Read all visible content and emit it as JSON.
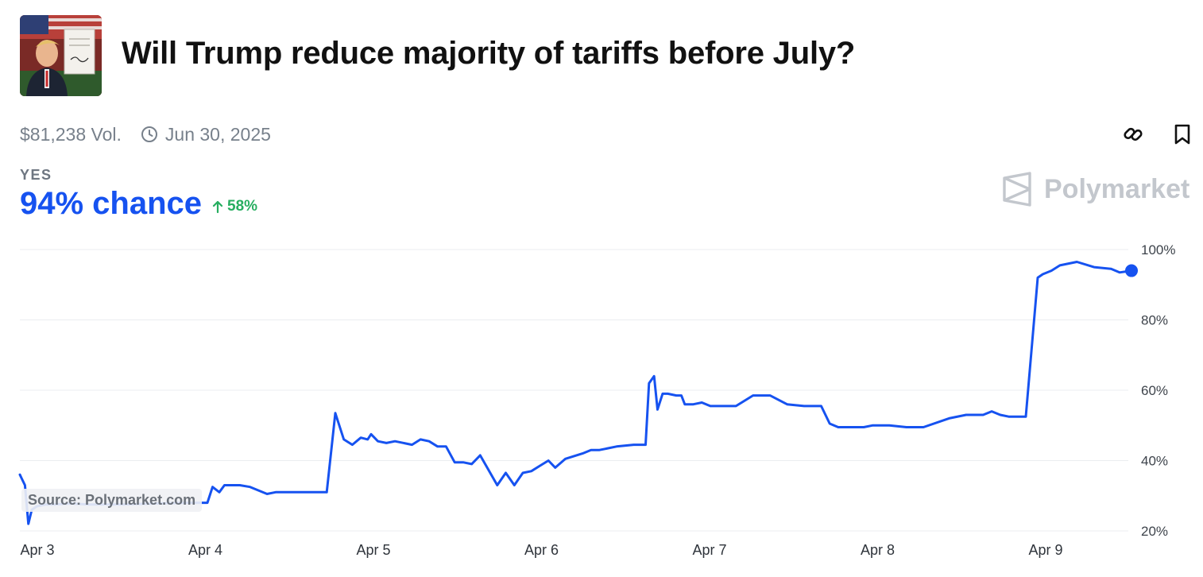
{
  "market": {
    "title": "Will Trump reduce majority of tariffs before July?",
    "volume": "$81,238 Vol.",
    "end_date": "Jun 30, 2025",
    "outcome_label": "YES",
    "chance": "94% chance",
    "change": "58%"
  },
  "brand": {
    "name": "Polymarket"
  },
  "source": "Source: Polymarket.com",
  "icons": {
    "thumbnail": "market-thumbnail-icon",
    "clock": "clock-icon",
    "link": "link-icon",
    "bookmark": "bookmark-icon",
    "arrow": "arrow-up-icon",
    "logo": "polymarket-logo-icon"
  },
  "colors": {
    "line": "#1652f0",
    "chance": "#1652f0",
    "up": "#27ae60",
    "brand": "#c3c7cd"
  },
  "chart_data": {
    "type": "line",
    "x_tick_labels": [
      "Apr 3",
      "Apr 4",
      "Apr 5",
      "Apr 6",
      "Apr 7",
      "Apr 8",
      "Apr 9"
    ],
    "y_tick_labels": [
      "100%",
      "80%",
      "60%",
      "40%",
      "20%"
    ],
    "y_ticks": [
      100,
      80,
      60,
      40,
      20
    ],
    "ylim": [
      20,
      100
    ],
    "xlim": [
      0,
      6.52
    ],
    "grid": true,
    "series": [
      {
        "x": [
          0,
          0.01,
          0.03,
          0.05,
          0.07,
          0.1,
          0.15,
          0.2,
          0.3,
          0.4,
          0.6,
          0.8,
          1.0,
          1.1,
          1.13,
          1.17,
          1.2,
          1.25,
          1.29,
          1.35,
          1.45,
          1.5,
          1.55,
          1.58,
          1.6,
          1.7,
          1.8,
          1.85,
          1.9,
          1.95,
          2.0,
          2.04,
          2.06,
          2.1,
          2.15,
          2.2,
          2.3,
          2.35,
          2.4,
          2.45,
          2.5,
          2.55,
          2.6,
          2.65,
          2.7,
          2.8,
          2.85,
          2.9,
          2.95,
          3.0,
          3.05,
          3.1,
          3.14,
          3.2,
          3.3,
          3.35,
          3.4,
          3.45,
          3.5,
          3.6,
          3.67,
          3.69,
          3.72,
          3.74,
          3.77,
          3.8,
          3.85,
          3.88,
          3.9,
          3.95,
          4.0,
          4.05,
          4.1,
          4.15,
          4.2,
          4.3,
          4.4,
          4.5,
          4.6,
          4.7,
          4.75,
          4.8,
          4.85,
          4.9,
          4.95,
          5.0,
          5.1,
          5.2,
          5.3,
          5.45,
          5.55,
          5.6,
          5.65,
          5.7,
          5.75,
          5.8,
          5.9,
          5.97,
          6.0,
          6.05,
          6.1,
          6.2,
          6.3,
          6.4,
          6.45,
          6.52
        ],
        "values": [
          36,
          35,
          33,
          22,
          26,
          27,
          27.5,
          27.5,
          27.8,
          27.5,
          27.5,
          27.8,
          28,
          28,
          32.5,
          31,
          33,
          33,
          33,
          32.5,
          30.5,
          31,
          31,
          31,
          31,
          31,
          31,
          53.5,
          46,
          44.5,
          46.5,
          46,
          47.5,
          45.5,
          45,
          45.5,
          44.5,
          46,
          45.5,
          44,
          44,
          39.5,
          39.5,
          39,
          41.5,
          33,
          36.5,
          33,
          36.5,
          37,
          38.5,
          40,
          38,
          40.5,
          42,
          43,
          43,
          43.5,
          44,
          44.5,
          44.5,
          62,
          64,
          54.5,
          59,
          59,
          58.5,
          58.5,
          56,
          56,
          56.5,
          55.5,
          55.5,
          55.5,
          55.5,
          58.5,
          58.5,
          56,
          55.5,
          55.5,
          50.5,
          49.5,
          49.5,
          49.5,
          49.5,
          50,
          50,
          49.5,
          49.5,
          52,
          53,
          53,
          53,
          54,
          53,
          52.5,
          52.5,
          92,
          93,
          94,
          95.5,
          96.5,
          95,
          94.5,
          93.5,
          94
        ]
      }
    ]
  }
}
